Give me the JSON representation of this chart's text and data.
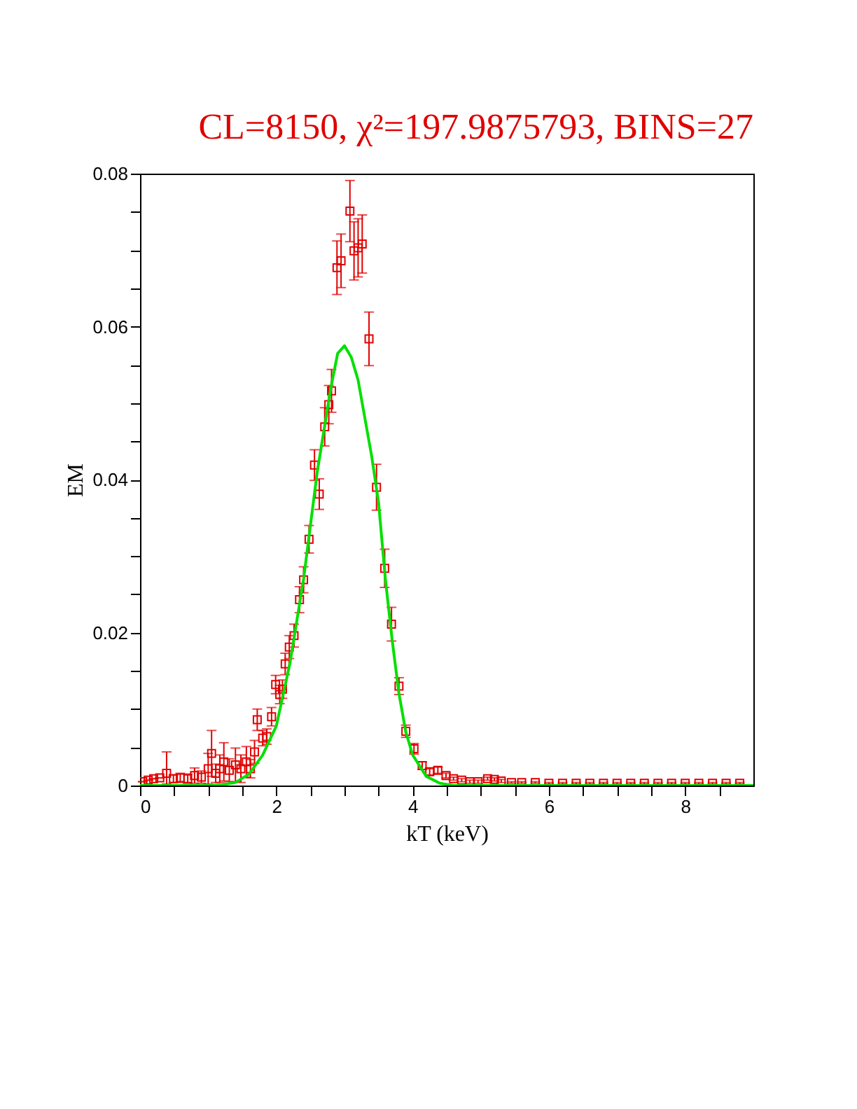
{
  "chart_data": {
    "type": "scatter",
    "title": "CL=8150, χ²=197.9875793, BINS=27",
    "xlabel": "kT (keV)",
    "ylabel": "EM",
    "xlim": [
      0,
      9
    ],
    "ylim": [
      0,
      0.08
    ],
    "xticks": [
      0,
      {
        "value": 0.5,
        "label": null
      },
      {
        "value": 1,
        "label": null
      },
      {
        "value": 1.5,
        "label": null
      },
      2,
      {
        "value": 2.5,
        "label": null
      },
      {
        "value": 3,
        "label": null
      },
      {
        "value": 3.5,
        "label": null
      },
      4,
      {
        "value": 4.5,
        "label": null
      },
      {
        "value": 5,
        "label": null
      },
      {
        "value": 5.5,
        "label": null
      },
      6,
      {
        "value": 6.5,
        "label": null
      },
      {
        "value": 7,
        "label": null
      },
      {
        "value": 7.5,
        "label": null
      },
      8,
      {
        "value": 8.5,
        "label": null
      }
    ],
    "yticks": [
      0,
      {
        "value": 0.005,
        "label": null
      },
      {
        "value": 0.01,
        "label": null
      },
      {
        "value": 0.015,
        "label": null
      },
      0.02,
      {
        "value": 0.025,
        "label": null
      },
      {
        "value": 0.03,
        "label": null
      },
      {
        "value": 0.035,
        "label": null
      },
      0.04,
      {
        "value": 0.045,
        "label": null
      },
      {
        "value": 0.05,
        "label": null
      },
      {
        "value": 0.055,
        "label": null
      },
      0.06,
      {
        "value": 0.065,
        "label": null
      },
      {
        "value": 0.07,
        "label": null
      },
      {
        "value": 0.075,
        "label": null
      },
      0.08
    ],
    "grid": false,
    "series": [
      {
        "color": "#e00000",
        "marker": "square",
        "x": [
          0.04,
          0.12,
          0.2,
          0.29,
          0.39,
          0.49,
          0.59,
          0.7,
          0.8,
          0.9,
          1.0,
          1.05,
          1.11,
          1.17,
          1.23,
          1.31,
          1.4,
          1.48,
          1.56,
          1.62,
          1.68,
          1.72,
          1.8,
          1.86,
          1.93,
          1.99,
          2.05,
          2.09,
          2.13,
          2.19,
          2.26,
          2.34,
          2.4,
          2.48,
          2.56,
          2.63,
          2.71,
          2.77,
          2.81,
          2.89,
          2.95,
          3.08,
          3.14,
          3.2,
          3.26,
          3.36,
          3.47,
          3.59,
          3.69,
          3.8,
          3.9,
          4.02,
          4.14,
          4.25,
          4.37,
          4.49,
          4.6,
          4.72,
          4.84,
          4.96,
          5.1,
          5.2,
          5.3,
          5.45,
          5.6,
          5.8,
          6.0,
          6.2,
          6.4,
          6.6,
          6.8,
          7.0,
          7.2,
          7.4,
          7.6,
          7.8,
          8.0,
          8.2,
          8.4,
          8.6,
          8.8
        ],
        "values": [
          0.0005,
          0.0007,
          0.0009,
          0.001,
          0.0016,
          0.0009,
          0.001,
          0.0009,
          0.0013,
          0.0011,
          0.0022,
          0.0042,
          0.0016,
          0.0022,
          0.0031,
          0.002,
          0.0027,
          0.0022,
          0.0031,
          0.0022,
          0.0044,
          0.0086,
          0.0062,
          0.0064,
          0.009,
          0.0132,
          0.0119,
          0.0126,
          0.0159,
          0.0181,
          0.0196,
          0.0243,
          0.0269,
          0.0322,
          0.0419,
          0.0381,
          0.0469,
          0.0498,
          0.0516,
          0.0677,
          0.0686,
          0.0751,
          0.0699,
          0.0703,
          0.0708,
          0.0584,
          0.039,
          0.0284,
          0.0211,
          0.013,
          0.0071,
          0.0048,
          0.0026,
          0.0018,
          0.002,
          0.0013,
          0.0009,
          0.0007,
          0.0005,
          0.0005,
          0.0009,
          0.0008,
          0.0006,
          0.0004,
          0.0004,
          0.0004,
          0.0003,
          0.0003,
          0.0003,
          0.0003,
          0.0003,
          0.0003,
          0.0003,
          0.0003,
          0.0003,
          0.0003,
          0.0003,
          0.0003,
          0.0003,
          0.0003,
          0.0003
        ],
        "errors": [
          null,
          null,
          null,
          null,
          [
            0.0002,
            0.0044
          ],
          0.0005,
          0.0006,
          0.0006,
          0.001,
          0.0008,
          0.002,
          0.003,
          0.0012,
          0.0018,
          0.0025,
          0.0015,
          0.0022,
          0.0018,
          0.002,
          0.0012,
          0.0015,
          0.0014,
          0.001,
          0.001,
          0.0012,
          0.0012,
          0.0012,
          0.0012,
          0.0014,
          0.0015,
          0.0015,
          0.0017,
          0.0017,
          0.0018,
          0.002,
          0.002,
          0.0025,
          0.0025,
          0.0028,
          0.0035,
          0.0035,
          0.004,
          0.0038,
          0.0038,
          0.0038,
          0.0035,
          0.003,
          0.0025,
          0.0022,
          0.0011,
          0.0008,
          0.0007,
          0.0005,
          0.0004,
          0.0004,
          0.0003,
          0.0002,
          0.0002,
          0.0002,
          0.0002,
          0.0002,
          0.0002,
          0.0002,
          0.0001,
          0.0001,
          0.0001,
          0.0001,
          0.0001,
          0.0001,
          0.0001,
          0.0001,
          0.0001,
          0.0001,
          0.0001,
          0.0001,
          0.0001,
          0.0001,
          0.0001,
          0.0001,
          0.0001,
          0.0001
        ]
      },
      {
        "type": "line",
        "color": "#00e000",
        "line_style": "solid",
        "x": [
          0,
          1.0,
          1.2,
          1.4,
          1.6,
          1.8,
          2.0,
          2.2,
          2.4,
          2.6,
          2.8,
          2.9,
          3.0,
          3.1,
          3.2,
          3.4,
          3.5,
          3.6,
          3.7,
          3.8,
          3.9,
          4.0,
          4.2,
          4.4,
          4.6,
          9
        ],
        "values": [
          0,
          0,
          0.0001,
          0.0004,
          0.0015,
          0.004,
          0.0078,
          0.016,
          0.027,
          0.041,
          0.052,
          0.0565,
          0.0575,
          0.056,
          0.053,
          0.043,
          0.037,
          0.027,
          0.019,
          0.012,
          0.007,
          0.004,
          0.0012,
          0.0003,
          0,
          0
        ]
      }
    ]
  }
}
